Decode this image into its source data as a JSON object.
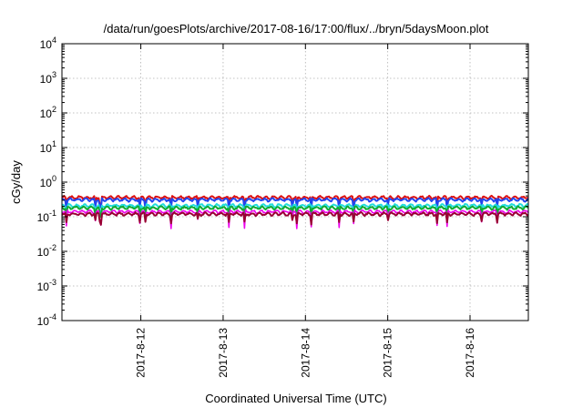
{
  "chart_data": {
    "type": "line",
    "title": "/data/run/goesPlots/archive/2017-08-16/17:00/flux/../bryn/5daysMoon.plot",
    "xlabel": "Coordinated Universal Time (UTC)",
    "ylabel": "cGy/day",
    "yscale": "log",
    "ylim": [
      0.0001,
      10000
    ],
    "y_ticks": [
      {
        "mantissa": "10",
        "exp": "-4",
        "value": 0.0001
      },
      {
        "mantissa": "10",
        "exp": "-3",
        "value": 0.001
      },
      {
        "mantissa": "10",
        "exp": "-2",
        "value": 0.01
      },
      {
        "mantissa": "10",
        "exp": "-1",
        "value": 0.1
      },
      {
        "mantissa": "10",
        "exp": "0",
        "value": 1
      },
      {
        "mantissa": "10",
        "exp": "1",
        "value": 10
      },
      {
        "mantissa": "10",
        "exp": "2",
        "value": 100
      },
      {
        "mantissa": "10",
        "exp": "3",
        "value": 1000
      },
      {
        "mantissa": "10",
        "exp": "4",
        "value": 10000
      }
    ],
    "x_type": "date",
    "xlim": [
      "2017-08-11T01:00",
      "2017-08-16T17:00"
    ],
    "x_ticks": [
      "2017-8-12",
      "2017-8-13",
      "2017-8-14",
      "2017-8-15",
      "2017-8-16"
    ],
    "x_tick_values": [
      "2017-08-12T00:00",
      "2017-08-13T00:00",
      "2017-08-14T00:00",
      "2017-08-15T00:00",
      "2017-08-16T00:00"
    ],
    "grid": true,
    "legend": "none",
    "series": [
      {
        "color": "#dd1111",
        "level": 0.36,
        "dips": false
      },
      {
        "color": "#2244ee",
        "level": 0.31,
        "dips": false
      },
      {
        "color": "#22dddd",
        "level": 0.21,
        "dips": false
      },
      {
        "color": "#11aa33",
        "level": 0.18,
        "dips": false
      },
      {
        "color": "#ee00ee",
        "level": 0.14,
        "dips": true
      },
      {
        "color": "#990033",
        "level": 0.12,
        "dips": false
      }
    ]
  }
}
